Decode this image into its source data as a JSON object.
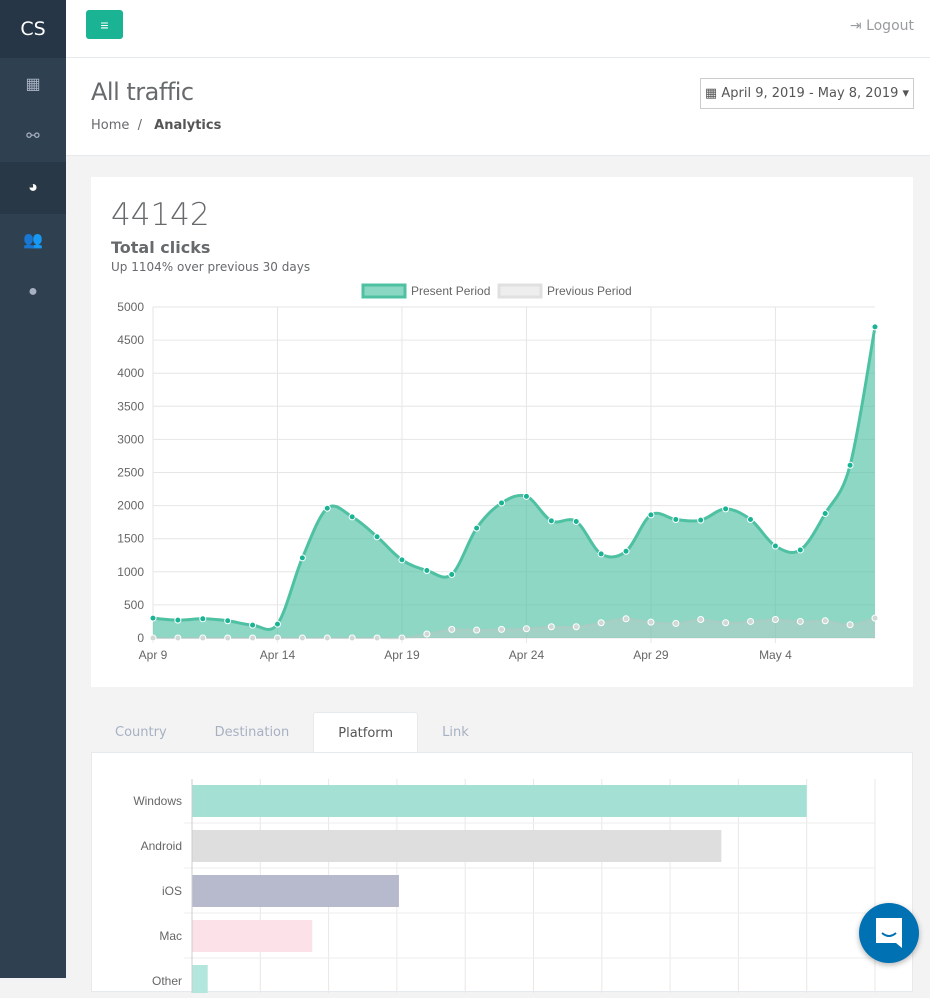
{
  "sidebar": {
    "brand": "CS",
    "items": [
      {
        "icon": "dashboard-icon",
        "glyph": "▦"
      },
      {
        "icon": "link-icon",
        "glyph": "⚯"
      },
      {
        "icon": "pie-chart-icon",
        "glyph": "◕",
        "active": true
      },
      {
        "icon": "users-icon",
        "glyph": "👥"
      },
      {
        "icon": "globe-icon",
        "glyph": "●"
      }
    ]
  },
  "topbar": {
    "menu_glyph": "≡",
    "logout": "Logout",
    "logout_icon": "sign-out-icon"
  },
  "header": {
    "title": "All traffic",
    "breadcrumb": [
      "Home",
      "Analytics"
    ],
    "date_range": "April 9, 2019 - May 8, 2019"
  },
  "summary": {
    "total": "44142",
    "label": "Total clicks",
    "change": "Up 1104% over previous 30 days"
  },
  "colors": {
    "accent": "#1ab394",
    "present": "#4fc1a3",
    "present_fill": "rgba(80,194,164,0.65)",
    "previous": "#e0e0e0",
    "chat": "#0071b2"
  },
  "chart_data": [
    {
      "type": "area",
      "legend_position": "top",
      "grid": true,
      "ylim": [
        0,
        5000
      ],
      "yticks": [
        "0",
        "500",
        "1000",
        "1500",
        "2000",
        "2500",
        "3000",
        "3500",
        "4000",
        "4500",
        "5000"
      ],
      "xtick_labels": [
        "Apr 9",
        "Apr 14",
        "Apr 19",
        "Apr 24",
        "Apr 29",
        "May 4"
      ],
      "x": [
        "Apr 9",
        "Apr 10",
        "Apr 11",
        "Apr 12",
        "Apr 13",
        "Apr 14",
        "Apr 15",
        "Apr 16",
        "Apr 17",
        "Apr 18",
        "Apr 19",
        "Apr 20",
        "Apr 21",
        "Apr 22",
        "Apr 23",
        "Apr 24",
        "Apr 25",
        "Apr 26",
        "Apr 27",
        "Apr 28",
        "Apr 29",
        "Apr 30",
        "May 1",
        "May 2",
        "May 3",
        "May 4",
        "May 5",
        "May 6",
        "May 7",
        "May 8"
      ],
      "series": [
        {
          "name": "Present Period",
          "values": [
            300,
            270,
            290,
            260,
            195,
            210,
            1210,
            1960,
            1830,
            1530,
            1180,
            1020,
            960,
            1660,
            2040,
            2140,
            1770,
            1760,
            1270,
            1310,
            1860,
            1790,
            1780,
            1950,
            1790,
            1390,
            1330,
            1880,
            2610,
            4700
          ]
        },
        {
          "name": "Previous Period",
          "values": [
            0,
            0,
            0,
            0,
            0,
            0,
            0,
            0,
            0,
            0,
            0,
            60,
            130,
            120,
            130,
            140,
            170,
            170,
            230,
            290,
            240,
            220,
            280,
            230,
            250,
            280,
            250,
            260,
            200,
            300
          ]
        }
      ]
    },
    {
      "type": "bar",
      "orientation": "horizontal",
      "grid": true,
      "categories": [
        "Windows",
        "Android",
        "iOS",
        "Mac",
        "Other"
      ],
      "values": [
        9,
        7.75,
        3.03,
        1.76,
        0.23
      ],
      "colors": [
        "#a4e1d4",
        "#dedede",
        "#b7bacd",
        "#fde1e8",
        "#b3e6dc"
      ]
    }
  ],
  "tabs": [
    {
      "label": "Country"
    },
    {
      "label": "Destination"
    },
    {
      "label": "Platform",
      "active": true
    },
    {
      "label": "Link"
    }
  ]
}
